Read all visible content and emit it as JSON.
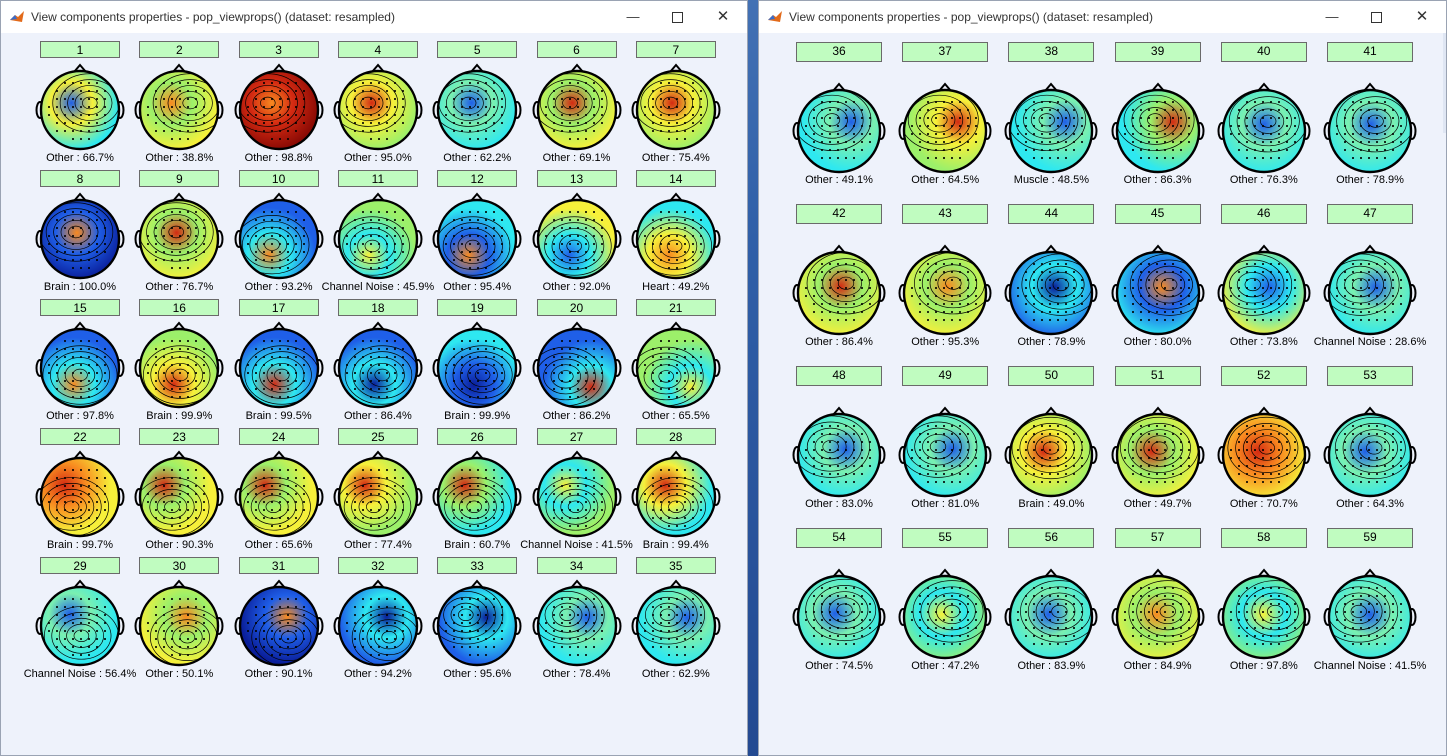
{
  "window_left": {
    "title": "View components properties - pop_viewprops() (dataset:  resampled)",
    "icons": {
      "app": "matlab-icon",
      "minimize": "minimize-icon",
      "maximize": "maximize-icon",
      "close": "close-icon"
    },
    "components": [
      {
        "id": "1",
        "label": "Other : 66.7%",
        "palette": "warm-blue"
      },
      {
        "id": "2",
        "label": "Other : 38.8%",
        "palette": "yellow"
      },
      {
        "id": "3",
        "label": "Other : 98.8%",
        "palette": "red"
      },
      {
        "id": "4",
        "label": "Other : 95.0%",
        "palette": "green-red"
      },
      {
        "id": "5",
        "label": "Other : 62.2%",
        "palette": "cyan"
      },
      {
        "id": "6",
        "label": "Other : 69.1%",
        "palette": "yellow-red"
      },
      {
        "id": "7",
        "label": "Other : 75.4%",
        "palette": "green-red"
      },
      {
        "id": "8",
        "label": "Brain : 100.0%",
        "palette": "deep-blue"
      },
      {
        "id": "9",
        "label": "Other : 76.7%",
        "palette": "yellow-red"
      },
      {
        "id": "10",
        "label": "Other : 93.2%",
        "palette": "blue-orange"
      },
      {
        "id": "11",
        "label": "Channel Noise : 45.9%",
        "palette": "green"
      },
      {
        "id": "12",
        "label": "Other : 95.4%",
        "palette": "cyan-orange"
      },
      {
        "id": "13",
        "label": "Other : 92.0%",
        "palette": "yellow-blue"
      },
      {
        "id": "14",
        "label": "Heart : 49.2%",
        "palette": "split"
      },
      {
        "id": "15",
        "label": "Other : 97.8%",
        "palette": "blue-orange"
      },
      {
        "id": "16",
        "label": "Brain : 99.9%",
        "palette": "green-red"
      },
      {
        "id": "17",
        "label": "Brain : 99.5%",
        "palette": "blue-red"
      },
      {
        "id": "18",
        "label": "Other : 86.4%",
        "palette": "blue"
      },
      {
        "id": "19",
        "label": "Brain : 99.9%",
        "palette": "blue-dark"
      },
      {
        "id": "20",
        "label": "Other : 86.2%",
        "palette": "blue-red"
      },
      {
        "id": "21",
        "label": "Other : 65.5%",
        "palette": "green"
      },
      {
        "id": "22",
        "label": "Brain : 99.7%",
        "palette": "orange-red"
      },
      {
        "id": "23",
        "label": "Other : 90.3%",
        "palette": "yellow-red"
      },
      {
        "id": "24",
        "label": "Other : 65.6%",
        "palette": "yellow-red"
      },
      {
        "id": "25",
        "label": "Other : 77.4%",
        "palette": "green-red"
      },
      {
        "id": "26",
        "label": "Brain : 60.7%",
        "palette": "cyan-red"
      },
      {
        "id": "27",
        "label": "Channel Noise : 41.5%",
        "palette": "green"
      },
      {
        "id": "28",
        "label": "Brain : 99.4%",
        "palette": "red-top"
      },
      {
        "id": "29",
        "label": "Channel Noise : 56.4%",
        "palette": "cyan"
      },
      {
        "id": "30",
        "label": "Other : 50.1%",
        "palette": "yellow"
      },
      {
        "id": "31",
        "label": "Other : 90.1%",
        "palette": "deep-blue"
      },
      {
        "id": "32",
        "label": "Other : 94.2%",
        "palette": "blue"
      },
      {
        "id": "33",
        "label": "Other : 95.6%",
        "palette": "blue"
      },
      {
        "id": "34",
        "label": "Other : 78.4%",
        "palette": "cyan"
      },
      {
        "id": "35",
        "label": "Other : 62.9%",
        "palette": "cyan"
      }
    ]
  },
  "window_right": {
    "title": "View components properties - pop_viewprops() (dataset:  resampled)",
    "icons": {
      "app": "matlab-icon",
      "minimize": "minimize-icon",
      "maximize": "maximize-icon",
      "close": "close-icon"
    },
    "components": [
      {
        "id": "36",
        "label": "Other : 49.1%",
        "palette": "cyan"
      },
      {
        "id": "37",
        "label": "Other : 64.5%",
        "palette": "green-red"
      },
      {
        "id": "38",
        "label": "Muscle : 48.5%",
        "palette": "cyan"
      },
      {
        "id": "39",
        "label": "Other : 86.3%",
        "palette": "cyan-red"
      },
      {
        "id": "40",
        "label": "Other : 76.3%",
        "palette": "cyan"
      },
      {
        "id": "41",
        "label": "Other : 78.9%",
        "palette": "cyan"
      },
      {
        "id": "42",
        "label": "Other : 86.4%",
        "palette": "yellow-red"
      },
      {
        "id": "43",
        "label": "Other : 95.3%",
        "palette": "yellow"
      },
      {
        "id": "44",
        "label": "Other : 78.9%",
        "palette": "blue"
      },
      {
        "id": "45",
        "label": "Other : 80.0%",
        "palette": "cyan-orange"
      },
      {
        "id": "46",
        "label": "Other : 73.8%",
        "palette": "yellow-blue"
      },
      {
        "id": "47",
        "label": "Channel Noise : 28.6%",
        "palette": "cyan"
      },
      {
        "id": "48",
        "label": "Other : 83.0%",
        "palette": "cyan"
      },
      {
        "id": "49",
        "label": "Other : 81.0%",
        "palette": "cyan"
      },
      {
        "id": "50",
        "label": "Brain : 49.0%",
        "palette": "green-red"
      },
      {
        "id": "51",
        "label": "Other : 49.7%",
        "palette": "yellow-red"
      },
      {
        "id": "52",
        "label": "Other : 70.7%",
        "palette": "orange-red"
      },
      {
        "id": "53",
        "label": "Other : 64.3%",
        "palette": "cyan"
      },
      {
        "id": "54",
        "label": "Other : 74.5%",
        "palette": "cyan"
      },
      {
        "id": "55",
        "label": "Other : 47.2%",
        "palette": "green"
      },
      {
        "id": "56",
        "label": "Other : 83.9%",
        "palette": "cyan"
      },
      {
        "id": "57",
        "label": "Other : 84.9%",
        "palette": "yellow"
      },
      {
        "id": "58",
        "label": "Other : 97.8%",
        "palette": "green"
      },
      {
        "id": "59",
        "label": "Channel Noise : 41.5%",
        "palette": "cyan"
      }
    ]
  },
  "colors": {
    "button_bg": "#c0fcc0",
    "window_bg": "#eef2fb",
    "dark_blue": "#0a1e9a",
    "blue": "#1f5fe8",
    "cyan": "#2ee8f0",
    "green": "#9cf06a",
    "yellow": "#f6f03a",
    "orange": "#f88a20",
    "red": "#d42a12",
    "dark_red": "#8a0a04"
  }
}
